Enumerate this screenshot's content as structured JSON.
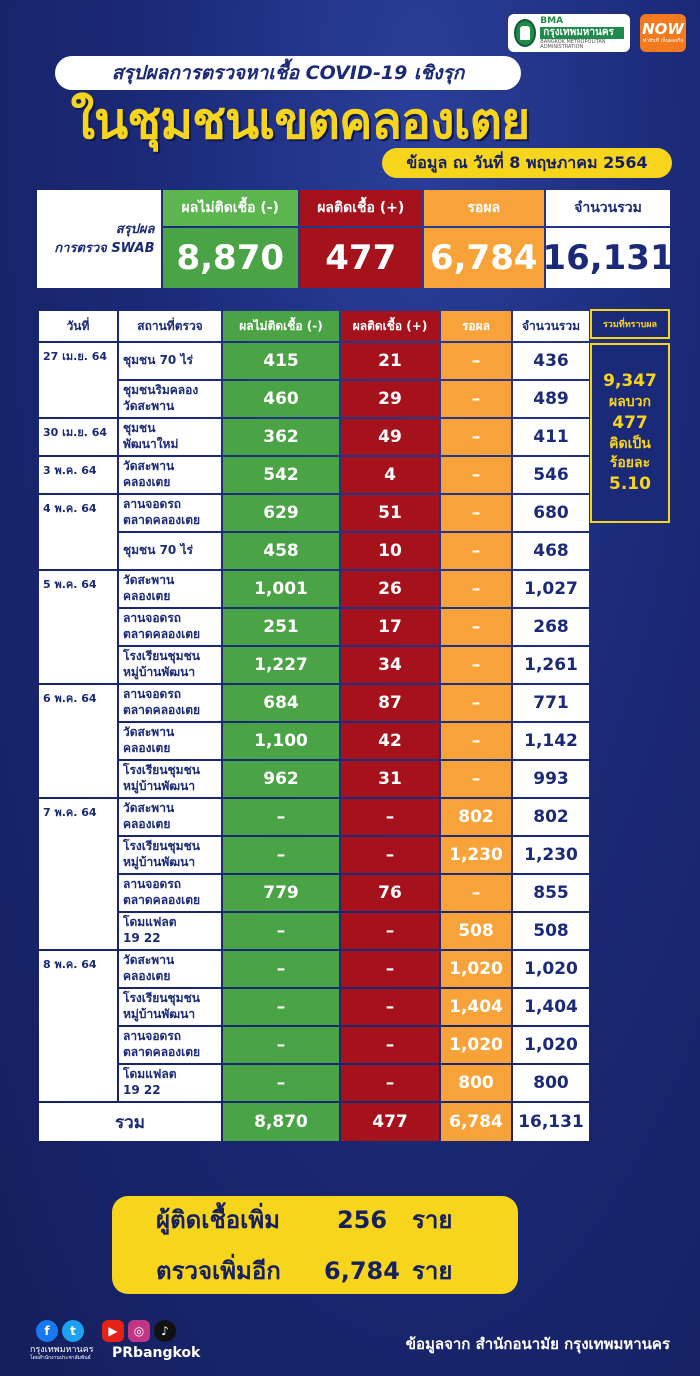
{
  "header": {
    "bma_logo_line1": "BMA",
    "bma_logo_line2": "กรุงเทพมหานคร",
    "bma_logo_line3": "BANGKOK METROPOLITAN ADMINISTRATION",
    "now_logo": "NOW",
    "now_tagline": "ทำทันที เห็นผลจริง",
    "subtitle": "สรุปผลการตรวจหาเชื้อ COVID-19 เชิงรุก",
    "title": "ในชุมชนเขตคลองเตย",
    "date": "ข้อมูล ณ วันที่ 8 พฤษภาคม 2564"
  },
  "summary": {
    "label_line1": "สรุปผล",
    "label_line2": "การตรวจ SWAB",
    "negative_label": "ผลไม่ติดเชื้อ (-)",
    "positive_label": "ผลติดเชื้อ (+)",
    "waiting_label": "รอผล",
    "total_label": "จำนวนรวม",
    "negative": "8,870",
    "positive": "477",
    "waiting": "6,784",
    "total": "16,131"
  },
  "table": {
    "headers": [
      "วันที่",
      "สถานที่ตรวจ",
      "ผลไม่ติดเชื้อ (-)",
      "ผลติดเชื้อ (+)",
      "รอผล",
      "จำนวนรวม"
    ],
    "groups": [
      {
        "date": "27 เม.ย. 64",
        "rows": [
          {
            "place": [
              "ชุมชน 70 ไร่"
            ],
            "neg": "415",
            "pos": "21",
            "wait": "–",
            "total": "436"
          },
          {
            "place": [
              "ชุมชนริมคลอง",
              "วัดสะพาน"
            ],
            "neg": "460",
            "pos": "29",
            "wait": "–",
            "total": "489"
          }
        ]
      },
      {
        "date": "30 เม.ย. 64",
        "rows": [
          {
            "place": [
              "ชุมชน",
              "พัฒนาใหม่"
            ],
            "neg": "362",
            "pos": "49",
            "wait": "–",
            "total": "411"
          }
        ]
      },
      {
        "date": "3 พ.ค. 64",
        "rows": [
          {
            "place": [
              "วัดสะพาน",
              "คลองเตย"
            ],
            "neg": "542",
            "pos": "4",
            "wait": "–",
            "total": "546"
          }
        ]
      },
      {
        "date": "4 พ.ค. 64",
        "rows": [
          {
            "place": [
              "ลานจอดรถ",
              "ตลาดคลองเตย"
            ],
            "neg": "629",
            "pos": "51",
            "wait": "–",
            "total": "680"
          },
          {
            "place": [
              "ชุมชน 70 ไร่"
            ],
            "neg": "458",
            "pos": "10",
            "wait": "–",
            "total": "468"
          }
        ]
      },
      {
        "date": "5 พ.ค. 64",
        "rows": [
          {
            "place": [
              "วัดสะพาน",
              "คลองเตย"
            ],
            "neg": "1,001",
            "pos": "26",
            "wait": "–",
            "total": "1,027"
          },
          {
            "place": [
              "ลานจอดรถ",
              "ตลาดคลองเตย"
            ],
            "neg": "251",
            "pos": "17",
            "wait": "–",
            "total": "268"
          },
          {
            "place": [
              "โรงเรียนชุมชน",
              "หมู่บ้านพัฒนา"
            ],
            "neg": "1,227",
            "pos": "34",
            "wait": "–",
            "total": "1,261"
          }
        ]
      },
      {
        "date": "6 พ.ค. 64",
        "rows": [
          {
            "place": [
              "ลานจอดรถ",
              "ตลาดคลองเตย"
            ],
            "neg": "684",
            "pos": "87",
            "wait": "–",
            "total": "771"
          },
          {
            "place": [
              "วัดสะพาน",
              "คลองเตย"
            ],
            "neg": "1,100",
            "pos": "42",
            "wait": "–",
            "total": "1,142"
          },
          {
            "place": [
              "โรงเรียนชุมชน",
              "หมู่บ้านพัฒนา"
            ],
            "neg": "962",
            "pos": "31",
            "wait": "–",
            "total": "993"
          }
        ]
      },
      {
        "date": "7 พ.ค. 64",
        "rows": [
          {
            "place": [
              "วัดสะพาน",
              "คลองเตย"
            ],
            "neg": "–",
            "pos": "–",
            "wait": "802",
            "total": "802"
          },
          {
            "place": [
              "โรงเรียนชุมชน",
              "หมู่บ้านพัฒนา"
            ],
            "neg": "–",
            "pos": "–",
            "wait": "1,230",
            "total": "1,230"
          },
          {
            "place": [
              "ลานจอดรถ",
              "ตลาดคลองเตย"
            ],
            "neg": "779",
            "pos": "76",
            "wait": "–",
            "total": "855"
          },
          {
            "place": [
              "โดมแฟลต",
              "19 22"
            ],
            "neg": "–",
            "pos": "–",
            "wait": "508",
            "total": "508"
          }
        ]
      },
      {
        "date": "8 พ.ค. 64",
        "rows": [
          {
            "place": [
              "วัดสะพาน",
              "คลองเตย"
            ],
            "neg": "–",
            "pos": "–",
            "wait": "1,020",
            "total": "1,020"
          },
          {
            "place": [
              "โรงเรียนชุมชน",
              "หมู่บ้านพัฒนา"
            ],
            "neg": "–",
            "pos": "–",
            "wait": "1,404",
            "total": "1,404"
          },
          {
            "place": [
              "ลานจอดรถ",
              "ตลาดคลองเตย"
            ],
            "neg": "–",
            "pos": "–",
            "wait": "1,020",
            "total": "1,020"
          },
          {
            "place": [
              "โดมแฟลต",
              "19 22"
            ],
            "neg": "–",
            "pos": "–",
            "wait": "800",
            "total": "800"
          }
        ]
      }
    ],
    "totals": {
      "label": "รวม",
      "neg": "8,870",
      "pos": "477",
      "wait": "6,784",
      "total": "16,131"
    }
  },
  "ratio": {
    "header": "รวมที่ทราบผล",
    "known": "9,347",
    "positive_label": "ผลบวก",
    "positive": "477",
    "pct_label_1": "คิดเป็น",
    "pct_label_2": "ร้อยละ",
    "pct": "5.10"
  },
  "highlight": {
    "row1_label": "ผู้ติดเชื้อเพิ่ม",
    "row1_value": "256",
    "row1_unit": "ราย",
    "row2_label": "ตรวจเพิ่มอีก",
    "row2_value": "6,784",
    "row2_unit": "ราย"
  },
  "footer": {
    "org_name": "กรุงเทพมหานคร",
    "org_sub": "โดยสำนักงานประชาสัมพันธ์",
    "handle": "PRbangkok",
    "source": "ข้อมูลจาก สำนักอนามัย กรุงเทพมหานคร",
    "icons": [
      "facebook-icon",
      "twitter-icon",
      "youtube-icon",
      "instagram-icon",
      "tiktok-icon"
    ]
  }
}
